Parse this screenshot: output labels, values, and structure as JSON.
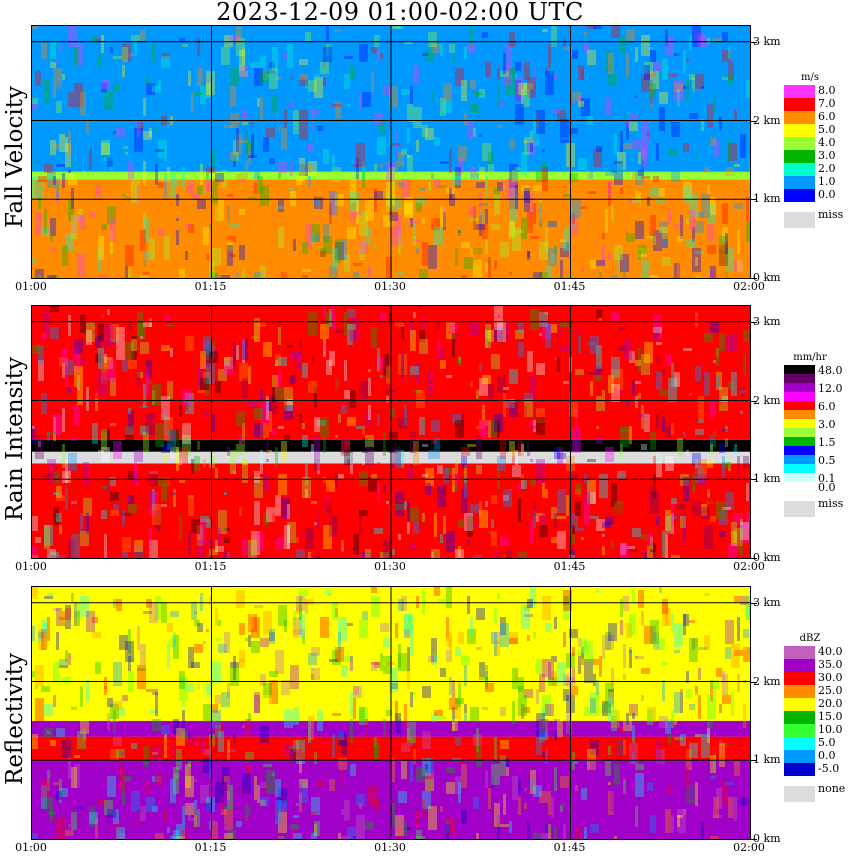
{
  "title": "2023-12-09   01:00-02:00 UTC",
  "height_ticks": [
    "0 km",
    "1 km",
    "2 km",
    "3 km"
  ],
  "time_ticks": [
    "01:00",
    "01:15",
    "01:30",
    "01:45",
    "02:00"
  ],
  "panels": [
    {
      "key": "fall",
      "label": "Fall Velocity",
      "unit": "m/s",
      "legend": [
        {
          "label": "8.0",
          "color": "#ff33ff"
        },
        {
          "label": "7.0",
          "color": "#ff0000"
        },
        {
          "label": "6.0",
          "color": "#ff8c00"
        },
        {
          "label": "5.0",
          "color": "#ffff00"
        },
        {
          "label": "4.0",
          "color": "#99ff33"
        },
        {
          "label": "3.0",
          "color": "#00b400"
        },
        {
          "label": "2.0",
          "color": "#00ffcc"
        },
        {
          "label": "1.0",
          "color": "#0099ff"
        },
        {
          "label": "0.0",
          "color": "#0000ff"
        }
      ],
      "missing_label": "miss"
    },
    {
      "key": "rain",
      "label": "Rain Intensity",
      "unit": "mm/hr",
      "legend": [
        {
          "label": "48.0",
          "color": "#000000"
        },
        {
          "label": "",
          "color": "#660066"
        },
        {
          "label": "12.0",
          "color": "#a000c8"
        },
        {
          "label": "",
          "color": "#ff00ff"
        },
        {
          "label": "6.0",
          "color": "#ff0000"
        },
        {
          "label": "",
          "color": "#ff8c00"
        },
        {
          "label": "3.0",
          "color": "#ffff00"
        },
        {
          "label": "",
          "color": "#99ff33"
        },
        {
          "label": "1.5",
          "color": "#00b400"
        },
        {
          "label": "",
          "color": "#0000ff"
        },
        {
          "label": "0.5",
          "color": "#0099ff"
        },
        {
          "label": "",
          "color": "#00ffff"
        },
        {
          "label": "0.1",
          "color": "#ccffff"
        },
        {
          "label": "0.0",
          "color": "#ffffff"
        }
      ],
      "missing_label": "miss"
    },
    {
      "key": "refl",
      "label": "Reflectivity",
      "unit": "dBZ",
      "legend": [
        {
          "label": "40.0",
          "color": "#c060c0"
        },
        {
          "label": "35.0",
          "color": "#a000c8"
        },
        {
          "label": "30.0",
          "color": "#ff0000"
        },
        {
          "label": "25.0",
          "color": "#ff8c00"
        },
        {
          "label": "20.0",
          "color": "#ffff00"
        },
        {
          "label": "15.0",
          "color": "#00b400"
        },
        {
          "label": "10.0",
          "color": "#33ff33"
        },
        {
          "label": "5.0",
          "color": "#00ffff"
        },
        {
          "label": "0.0",
          "color": "#0099ff"
        },
        {
          "label": "-5.0",
          "color": "#0000cc"
        }
      ],
      "missing_label": "none"
    }
  ],
  "chart_data": [
    {
      "type": "heatmap",
      "title": "2023-12-09   01:00-02:00 UTC",
      "ylabel": "Fall Velocity",
      "unit": "m/s",
      "x_range": [
        "01:00",
        "02:00"
      ],
      "ylim_km": [
        0,
        3.2
      ],
      "layers": [
        {
          "from_km": 0.0,
          "to_km": 1.25,
          "value": 6.0
        },
        {
          "from_km": 1.25,
          "to_km": 1.35,
          "value": 4.0
        },
        {
          "from_km": 1.35,
          "to_km": 3.2,
          "value": 1.0
        }
      ]
    },
    {
      "type": "heatmap",
      "ylabel": "Rain Intensity",
      "unit": "mm/hr",
      "x_range": [
        "01:00",
        "02:00"
      ],
      "ylim_km": [
        0,
        3.2
      ],
      "layers": [
        {
          "from_km": 0.0,
          "to_km": 1.2,
          "value": 6.0
        },
        {
          "from_km": 1.35,
          "to_km": 1.5,
          "value": 48.0
        },
        {
          "from_km": 1.5,
          "to_km": 3.2,
          "value": 6.0
        }
      ]
    },
    {
      "type": "heatmap",
      "ylabel": "Reflectivity",
      "unit": "dBZ",
      "x_range": [
        "01:00",
        "02:00"
      ],
      "ylim_km": [
        0,
        3.2
      ],
      "layers": [
        {
          "from_km": 0.0,
          "to_km": 1.0,
          "value": 35.0
        },
        {
          "from_km": 1.0,
          "to_km": 1.3,
          "value": 30.0
        },
        {
          "from_km": 1.3,
          "to_km": 1.5,
          "value": 35.0
        },
        {
          "from_km": 1.5,
          "to_km": 3.2,
          "value": 20.0
        }
      ]
    }
  ]
}
